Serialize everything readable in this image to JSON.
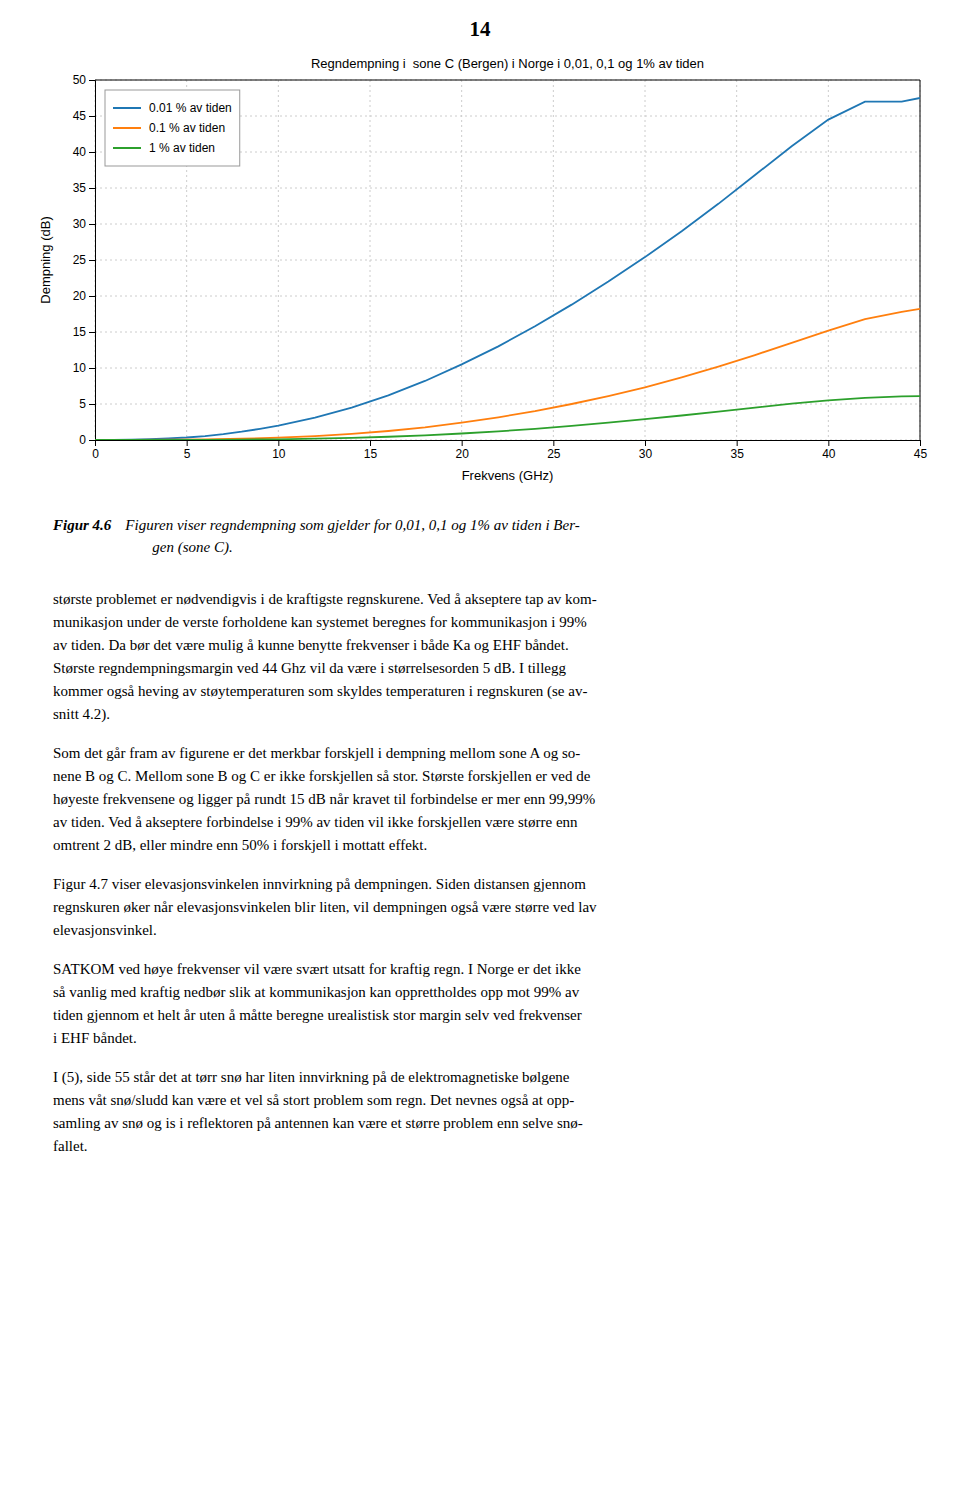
{
  "page_number": "14",
  "caption": {
    "label": "Figur 4.6",
    "lines": [
      "Figuren viser regndempning som gjelder for 0,01, 0,1 og 1% av tiden i Ber-",
      "gen (sone C)."
    ]
  },
  "paragraphs": [
    [
      "største problemet er nødvendigvis i de kraftigste regnskurene. Ved å akseptere tap av kom-",
      "munikasjon under de verste forholdene kan systemet beregnes for kommunikasjon i 99%",
      "av tiden. Da bør det være mulig å kunne benytte frekvenser i både Ka og EHF båndet.",
      "Største regndempningsmargin ved 44 Ghz vil da være i størrelsesorden 5 dB. I tillegg",
      "kommer også heving av støytemperaturen som skyldes temperaturen i regnskuren (se av-",
      "snitt 4.2)."
    ],
    [
      "Som det går fram av figurene er det merkbar forskjell i dempning mellom sone A og so-",
      "nene B og C. Mellom sone B og C er ikke forskjellen så stor. Største forskjellen er ved de",
      "høyeste frekvensene og ligger på rundt 15 dB når kravet til forbindelse er mer enn 99,99%",
      "av tiden. Ved å akseptere forbindelse i 99% av tiden vil ikke forskjellen være større enn",
      "omtrent 2 dB, eller mindre enn 50% i forskjell i mottatt effekt."
    ],
    [
      "Figur 4.7 viser elevasjonsvinkelen innvirkning på dempningen. Siden distansen gjennom",
      "regnskuren øker når elevasjonsvinkelen blir liten, vil dempningen også være større ved lav",
      "elevasjonsvinkel."
    ],
    [
      "SATKOM ved høye frekvenser vil være svært utsatt for kraftig regn. I Norge er det ikke",
      "så vanlig med kraftig nedbør slik at kommunikasjon kan opprettholdes opp mot 99% av",
      "tiden gjennom et helt år uten å måtte beregne urealistisk stor margin selv ved frekvenser",
      "i EHF båndet."
    ],
    [
      "I (5), side 55 står det at tørr snø har liten innvirkning på de elektromagnetiske bølgene",
      "mens våt snø/sludd kan være et vel så stort problem som regn. Det nevnes også at opp-",
      "samling av snø og is i reflektoren på antennen kan være et større problem enn selve snø-",
      "fallet."
    ]
  ],
  "chart_data": {
    "type": "line",
    "title": "Regndempning i  sone C (Bergen) i Norge i 0,01, 0,1 og 1% av tiden",
    "x_label": "Frekvens (GHz)",
    "y_label": "Dempning (dB)",
    "xlim": [
      0,
      45
    ],
    "ylim": [
      0,
      50
    ],
    "xticks": [
      0,
      5,
      10,
      15,
      20,
      25,
      30,
      35,
      40,
      45
    ],
    "yticks": [
      0,
      5,
      10,
      15,
      20,
      25,
      30,
      35,
      40,
      45,
      50
    ],
    "grid": true,
    "legend": "upper left",
    "series": [
      {
        "name": "0.01 % av tiden",
        "x": [
          0,
          1,
          2,
          3,
          4,
          5,
          6,
          7,
          8,
          9,
          10,
          12,
          14,
          16,
          18,
          20,
          22,
          24,
          26,
          28,
          30,
          32,
          34,
          36,
          38,
          40,
          42,
          44,
          45
        ],
        "values": [
          0,
          0.02,
          0.06,
          0.12,
          0.22,
          0.35,
          0.55,
          0.82,
          1.15,
          1.55,
          2.0,
          3.1,
          4.5,
          6.2,
          8.2,
          10.5,
          13.0,
          15.8,
          18.8,
          22.0,
          25.4,
          29.0,
          32.8,
          36.8,
          40.8,
          44.5,
          47.0,
          47.0,
          47.5
        ]
      },
      {
        "name": "0.1 % av tiden",
        "x": [
          0,
          2,
          4,
          6,
          8,
          10,
          12,
          14,
          16,
          18,
          20,
          22,
          24,
          26,
          28,
          30,
          32,
          34,
          36,
          38,
          40,
          42,
          44,
          45
        ],
        "values": [
          0,
          0.01,
          0.04,
          0.09,
          0.18,
          0.32,
          0.55,
          0.85,
          1.25,
          1.75,
          2.4,
          3.15,
          4.0,
          5.0,
          6.1,
          7.3,
          8.7,
          10.2,
          11.8,
          13.5,
          15.2,
          16.8,
          17.8,
          18.2
        ]
      },
      {
        "name": "1 % av tiden",
        "x": [
          0,
          2,
          4,
          6,
          8,
          10,
          12,
          14,
          16,
          18,
          20,
          22,
          24,
          26,
          28,
          30,
          32,
          34,
          36,
          38,
          40,
          42,
          44,
          45
        ],
        "values": [
          0,
          0.005,
          0.015,
          0.03,
          0.06,
          0.1,
          0.18,
          0.3,
          0.45,
          0.65,
          0.9,
          1.2,
          1.55,
          1.95,
          2.4,
          2.9,
          3.4,
          3.95,
          4.5,
          5.05,
          5.5,
          5.85,
          6.05,
          6.1
        ]
      }
    ]
  }
}
